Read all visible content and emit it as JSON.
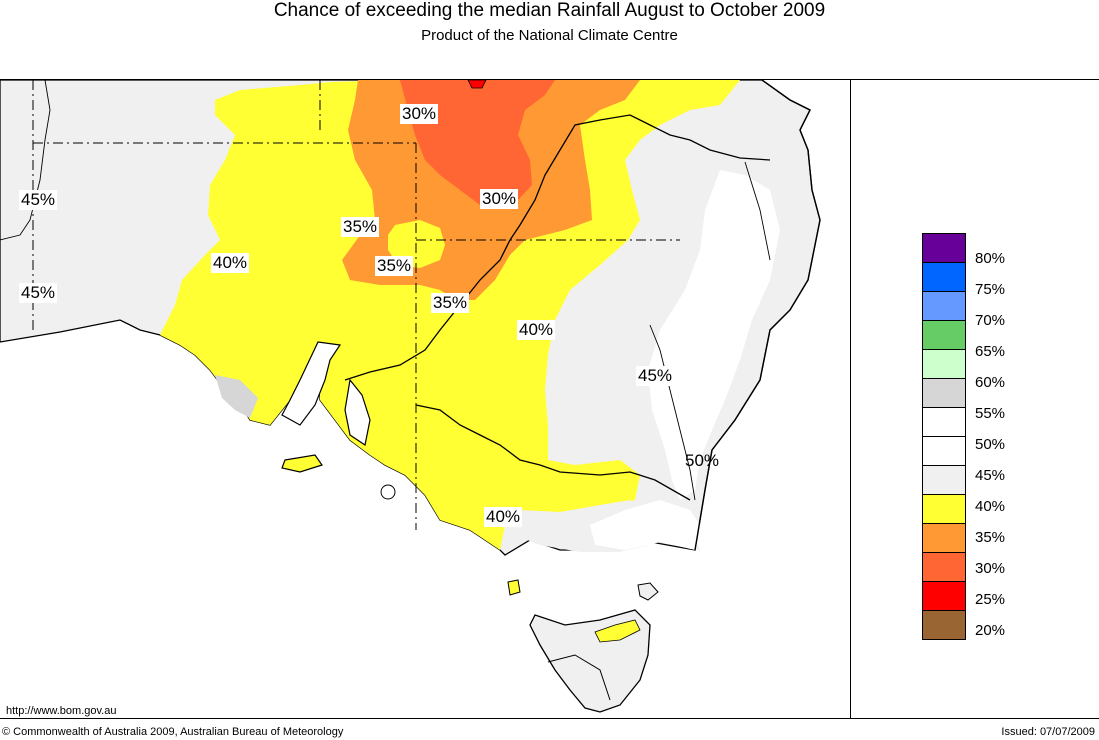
{
  "header": {
    "title": "Chance of exceeding the median Rainfall August to October 2009",
    "subtitle": "Product of the National Climate Centre"
  },
  "map": {
    "contour_labels": [
      {
        "text": "30%",
        "boxed": true
      },
      {
        "text": "30%",
        "boxed": true
      },
      {
        "text": "35%",
        "boxed": true
      },
      {
        "text": "35%",
        "boxed": true
      },
      {
        "text": "35%",
        "boxed": true
      },
      {
        "text": "40%",
        "boxed": true
      },
      {
        "text": "40%",
        "boxed": true
      },
      {
        "text": "40%",
        "boxed": true
      },
      {
        "text": "45%",
        "boxed": true
      },
      {
        "text": "45%",
        "boxed": true
      },
      {
        "text": "45%",
        "boxed": true
      },
      {
        "text": "50%",
        "boxed": false
      }
    ],
    "colors": {
      "p20_25": "#996633",
      "p25_30": "#ff0000",
      "p30_35": "#ff6633",
      "p35_40": "#ff9933",
      "p40_45": "#ffff33",
      "p45_50": "#f0f0f0",
      "p50_55": "#ffffff",
      "p55_60": "#d6d6d6",
      "sea": "#ffffff"
    }
  },
  "legend": {
    "items": [
      {
        "color": "#660099"
      },
      {
        "color": "#0066ff"
      },
      {
        "color": "#6699ff"
      },
      {
        "color": "#66cc66"
      },
      {
        "color": "#ccffcc"
      },
      {
        "color": "#d6d6d6"
      },
      {
        "color": "#ffffff"
      },
      {
        "color": "#ffffff"
      },
      {
        "color": "#f0f0f0"
      },
      {
        "color": "#ffff33"
      },
      {
        "color": "#ff9933"
      },
      {
        "color": "#ff6633"
      },
      {
        "color": "#ff0000"
      },
      {
        "color": "#996633"
      }
    ],
    "labels": [
      "80%",
      "75%",
      "70%",
      "65%",
      "60%",
      "55%",
      "50%",
      "45%",
      "40%",
      "35%",
      "30%",
      "25%",
      "20%"
    ]
  },
  "footer": {
    "url": "http://www.bom.gov.au",
    "copyright": "© Commonwealth of Australia 2009, Australian Bureau of Meteorology",
    "issued": "Issued: 07/07/2009"
  }
}
